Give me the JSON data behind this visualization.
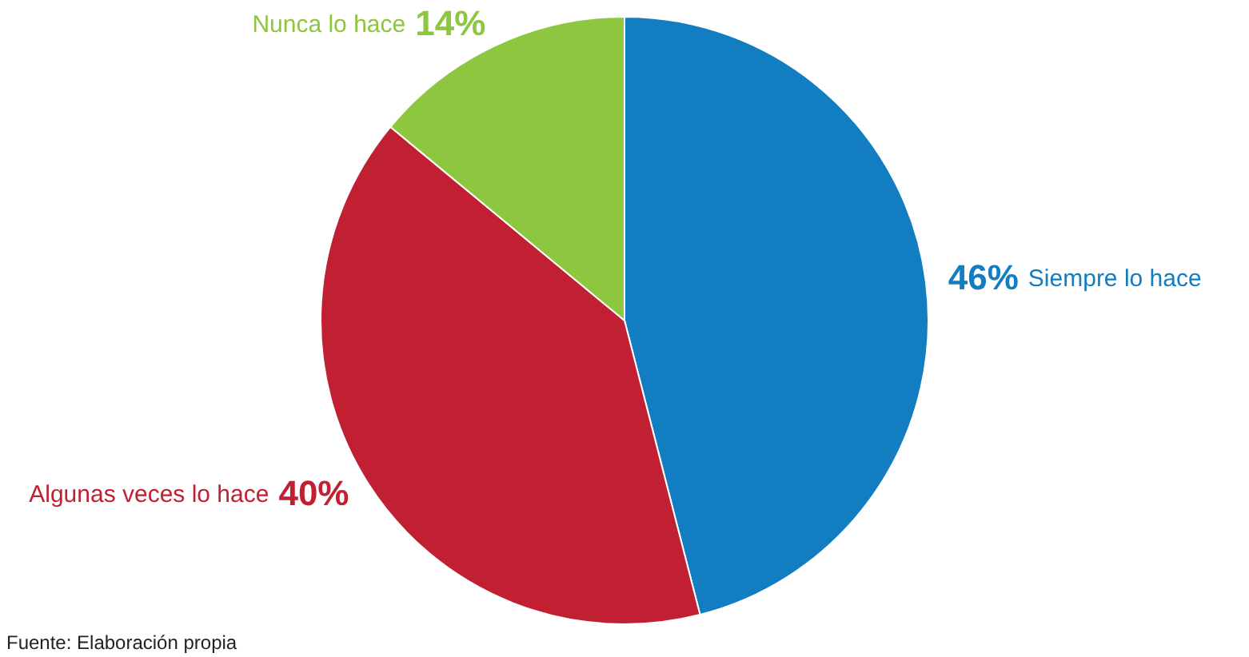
{
  "chart_data": {
    "type": "pie",
    "categories": [
      "Siempre lo hace",
      "Algunas veces lo hace",
      "Nunca lo hace"
    ],
    "values": [
      46,
      40,
      14
    ],
    "value_labels": [
      "46%",
      "40%",
      "14%"
    ],
    "colors": [
      "#137dc1",
      "#c12033",
      "#8dc63f"
    ],
    "legend": false,
    "annotations": [
      "Fuente: Elaboración propia"
    ]
  }
}
